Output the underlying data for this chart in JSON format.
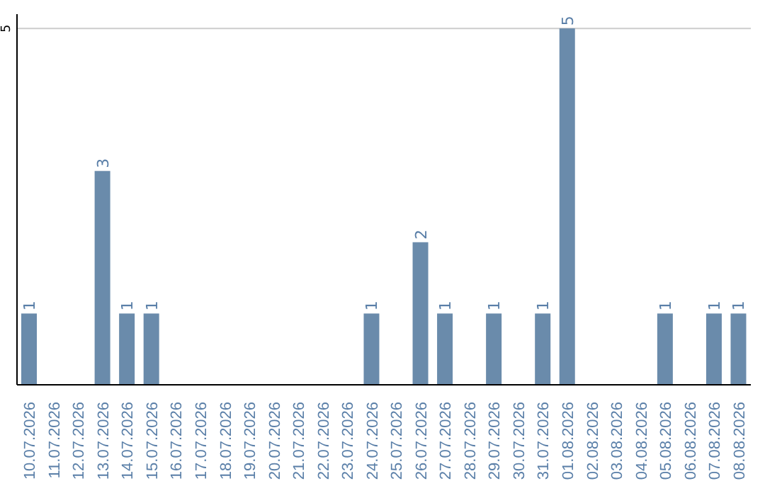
{
  "chart_data": {
    "type": "bar",
    "categories": [
      "10.07.2026",
      "11.07.2026",
      "12.07.2026",
      "13.07.2026",
      "14.07.2026",
      "15.07.2026",
      "16.07.2026",
      "17.07.2026",
      "18.07.2026",
      "19.07.2026",
      "20.07.2026",
      "21.07.2026",
      "22.07.2026",
      "23.07.2026",
      "24.07.2026",
      "25.07.2026",
      "26.07.2026",
      "27.07.2026",
      "28.07.2026",
      "29.07.2026",
      "30.07.2026",
      "31.07.2026",
      "01.08.2026",
      "02.08.2026",
      "03.08.2026",
      "04.08.2026",
      "05.08.2026",
      "06.08.2026",
      "07.08.2026",
      "08.08.2026"
    ],
    "values": [
      1,
      0,
      0,
      3,
      1,
      1,
      0,
      0,
      0,
      0,
      0,
      0,
      0,
      0,
      1,
      0,
      2,
      1,
      0,
      1,
      0,
      1,
      5,
      0,
      0,
      0,
      1,
      0,
      1,
      1
    ],
    "value_labels": [
      "1",
      null,
      null,
      "3",
      "1",
      "1",
      null,
      null,
      null,
      null,
      null,
      null,
      null,
      null,
      "1",
      null,
      "2",
      "1",
      null,
      "1",
      null,
      "1",
      "5",
      null,
      null,
      null,
      "1",
      null,
      "1",
      "1"
    ],
    "color": "#6a8bab",
    "ylim": [
      0,
      5.2
    ],
    "yticks": [
      5
    ],
    "grid": "y"
  }
}
